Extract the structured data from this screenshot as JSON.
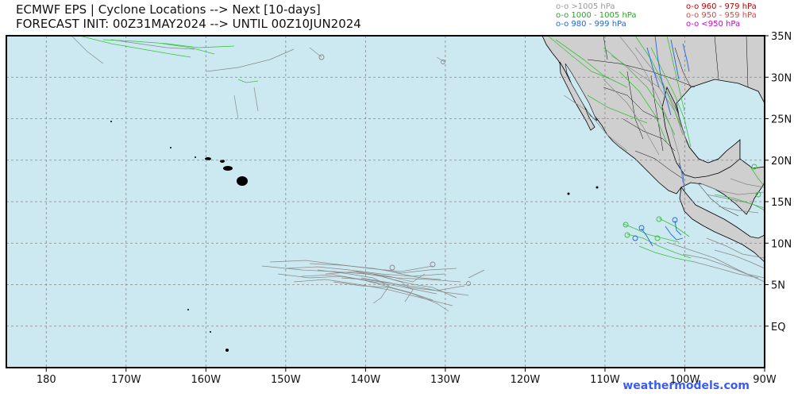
{
  "header": {
    "title_line1": "ECMWF EPS | Cyclone Locations --> Next [10-days]",
    "title_line2": "FORECAST INIT: 00Z31MAY2024 --> UNTIL 00Z10JUN2024"
  },
  "legend": {
    "left": [
      {
        "label": "o-o >1005 hPa",
        "color": "#9a9a9a"
      },
      {
        "label": "o-o 1000 - 1005 hPa",
        "color": "#22aa22"
      },
      {
        "label": "o-o 980 - 999 hPa",
        "color": "#2266dd"
      }
    ],
    "right": [
      {
        "label": "o-o 960 - 979 hPa",
        "color": "#bb0000"
      },
      {
        "label": "o-o 950 - 959 hPa",
        "color": "#dd4444"
      },
      {
        "label": "o-o <950 hPa",
        "color": "#cc00cc"
      }
    ]
  },
  "map": {
    "lon_min": -185,
    "lon_max": -90,
    "lat_min": -5,
    "lat_max": 35,
    "ocean_color": "#cce9f2",
    "land_color": "#cfcfcf",
    "lat_labels": [
      "35N",
      "30N",
      "25N",
      "20N",
      "15N",
      "10N",
      "5N",
      "EQ"
    ],
    "lat_values": [
      35,
      30,
      25,
      20,
      15,
      10,
      5,
      0
    ],
    "lon_labels": [
      "180",
      "170W",
      "160W",
      "150W",
      "140W",
      "130W",
      "120W",
      "110W",
      "100W",
      "90W"
    ],
    "lon_values": [
      -180,
      -170,
      -160,
      -150,
      -140,
      -130,
      -120,
      -110,
      -100,
      -90
    ]
  },
  "footer": {
    "credit": "weathermodels.com"
  }
}
